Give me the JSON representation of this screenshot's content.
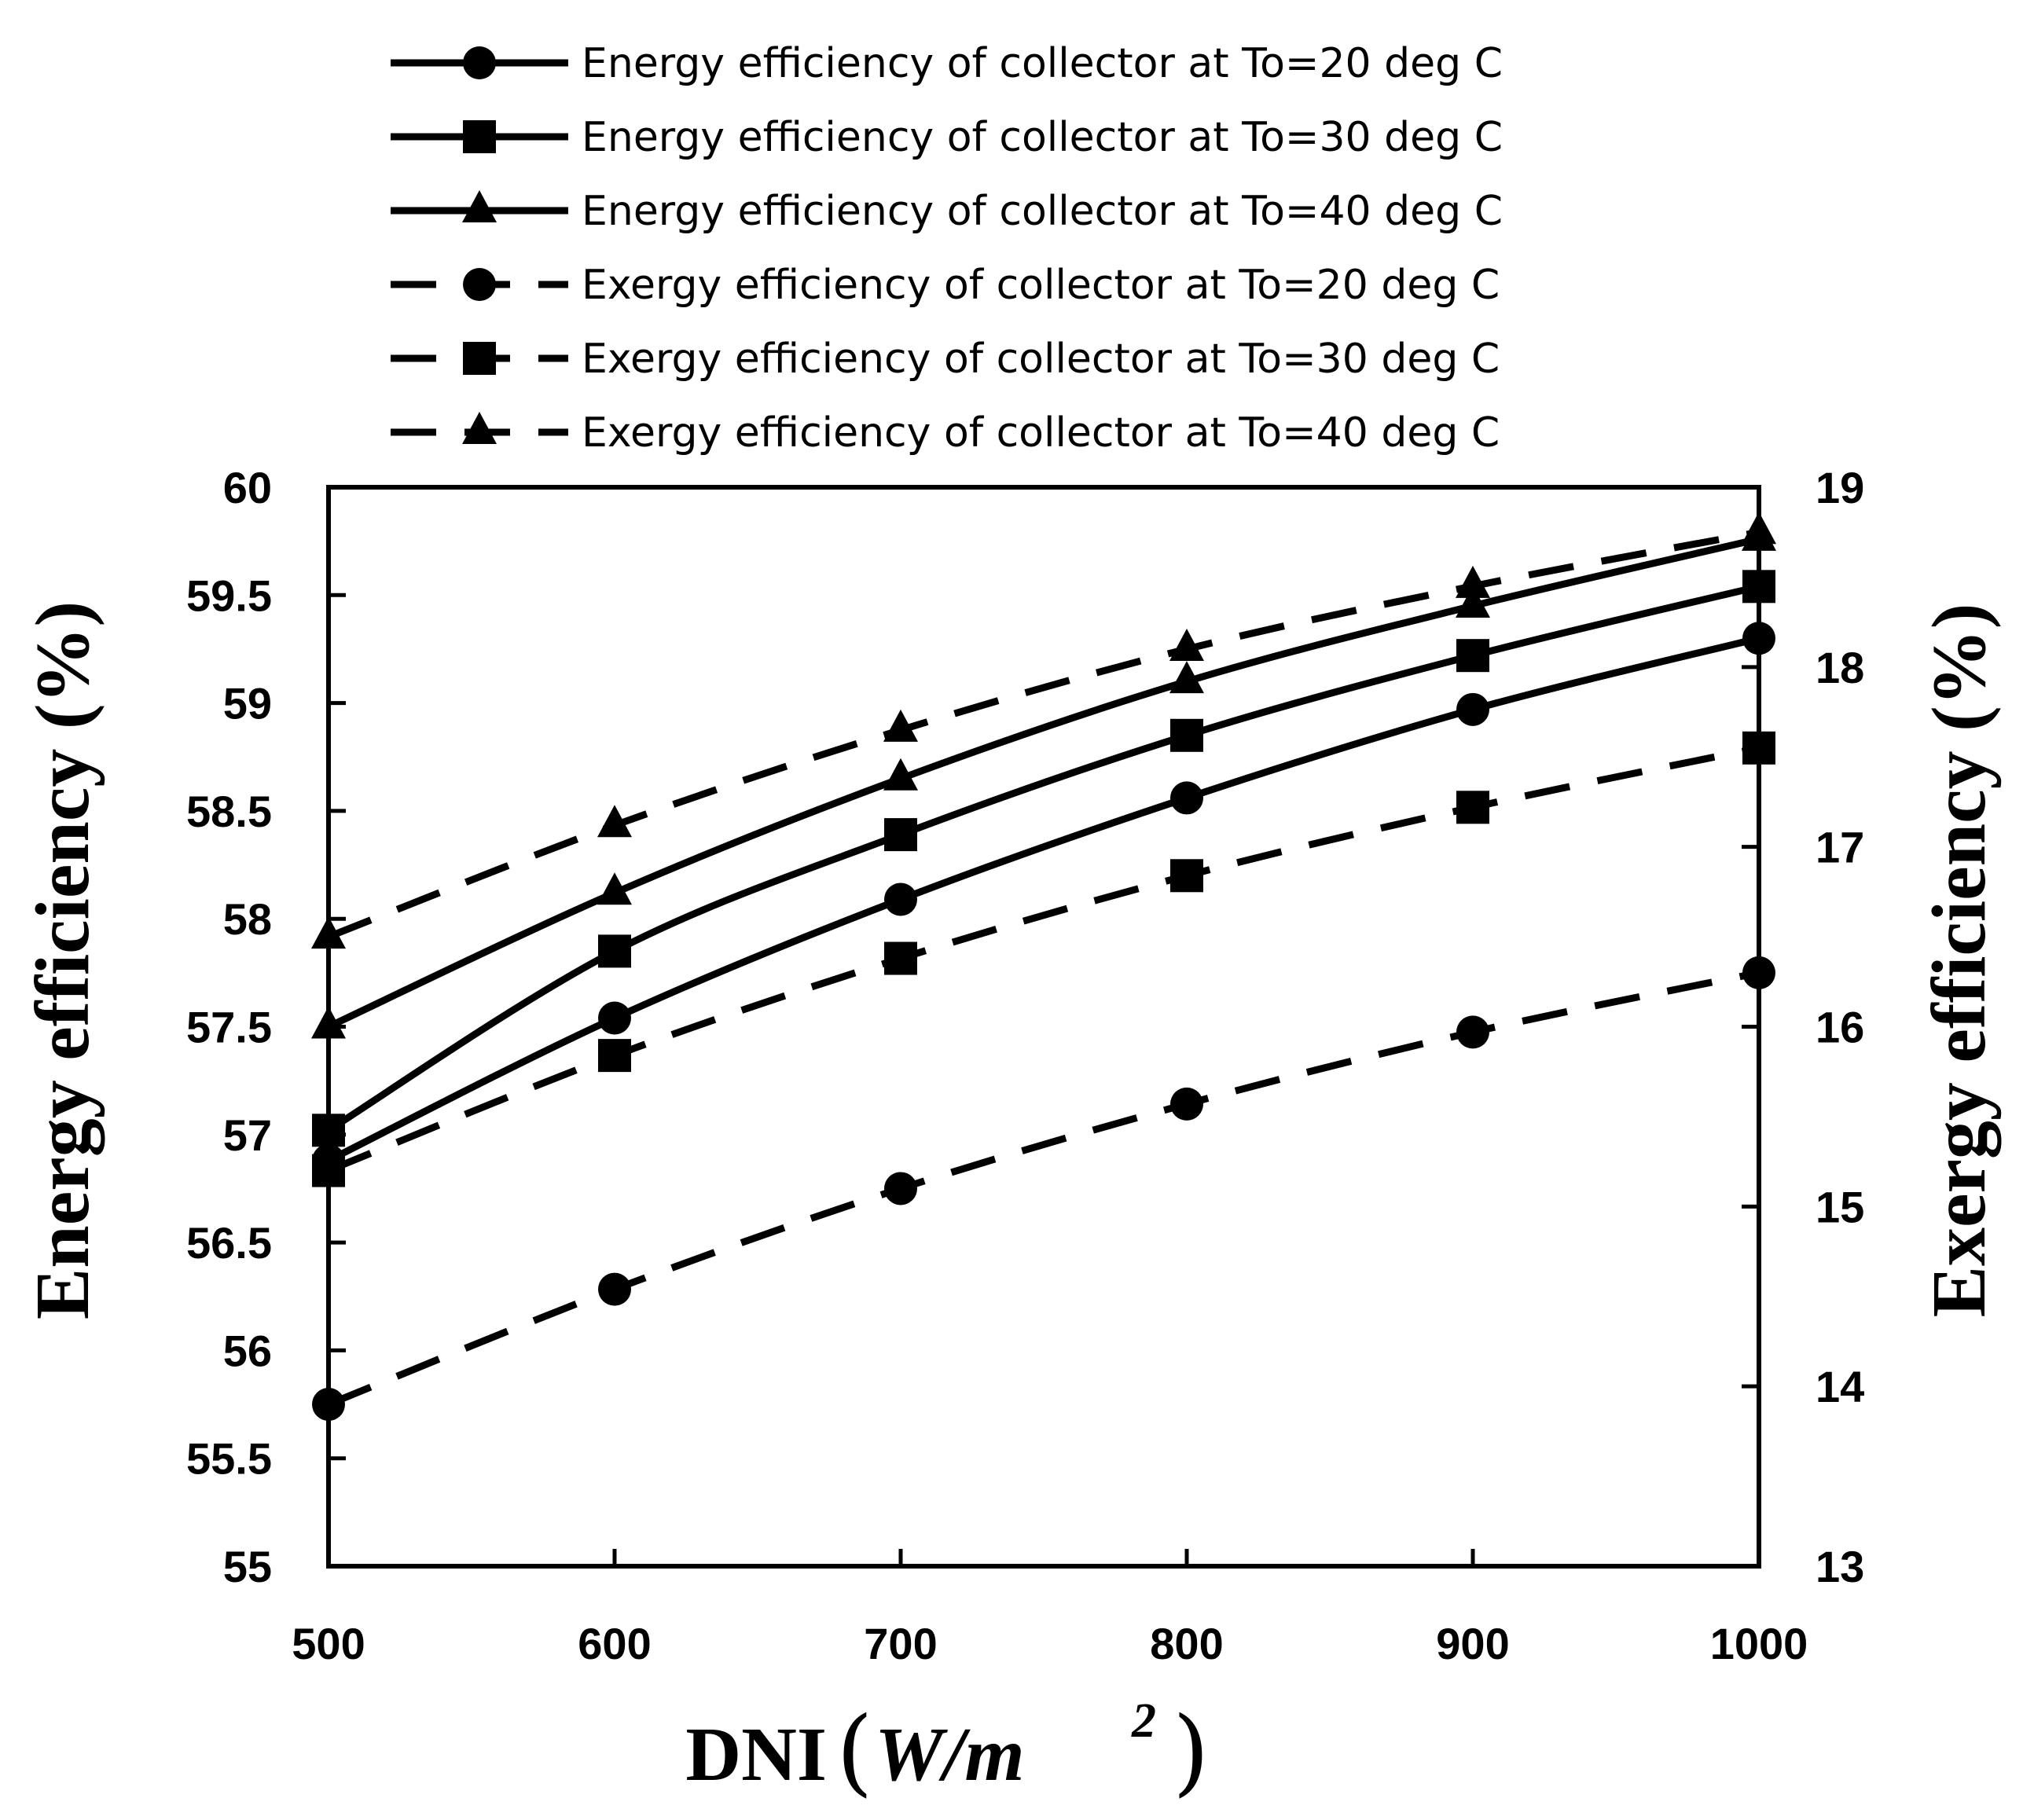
{
  "chart_data": {
    "type": "line",
    "x": [
      500,
      600,
      700,
      800,
      900,
      1000
    ],
    "xlabel": "DNI",
    "xlabel_unit": {
      "base": "W/m",
      "sup": "2"
    },
    "xlim": [
      500,
      1000
    ],
    "xticks": [
      "500",
      "600",
      "700",
      "800",
      "900",
      "1000"
    ],
    "ylabel_left": "Energy efficiency (%)",
    "ylim_left": [
      55,
      60
    ],
    "yticks_left": [
      "55",
      "55.5",
      "56",
      "56.5",
      "57",
      "57.5",
      "58",
      "58.5",
      "59",
      "59.5",
      "60"
    ],
    "ylabel_right": "Exergy efficiency (%)",
    "ylim_right": [
      13,
      19
    ],
    "yticks_right": [
      "13",
      "14",
      "15",
      "16",
      "17",
      "18",
      "19"
    ],
    "grid": false,
    "legend_position": "top",
    "series": [
      {
        "name": "Energy efficiency of collector at To=20 deg C",
        "axis": "left",
        "dash": "solid",
        "marker": "circle",
        "values": [
          56.88,
          57.54,
          58.09,
          58.56,
          58.97,
          59.3
        ]
      },
      {
        "name": "Energy efficiency of collector at To=30 deg C",
        "axis": "left",
        "dash": "solid",
        "marker": "square",
        "values": [
          57.02,
          57.85,
          58.39,
          58.85,
          59.22,
          59.54
        ]
      },
      {
        "name": "Energy efficiency of collector at To=40 deg C",
        "axis": "left",
        "dash": "solid",
        "marker": "triangle",
        "values": [
          57.5,
          58.12,
          58.65,
          59.1,
          59.45,
          59.76
        ]
      },
      {
        "name": "Exergy efficiency of collector at To=20 deg C",
        "axis": "right",
        "dash": "dashed",
        "marker": "circle",
        "values": [
          13.9,
          14.54,
          15.1,
          15.57,
          15.97,
          16.3
        ]
      },
      {
        "name": "Exergy efficiency of collector at To=30 deg C",
        "axis": "right",
        "dash": "dashed",
        "marker": "square",
        "values": [
          15.2,
          15.84,
          16.38,
          16.84,
          17.22,
          17.55
        ]
      },
      {
        "name": "Exergy efficiency of collector at To=40 deg C",
        "axis": "right",
        "dash": "dashed",
        "marker": "triangle",
        "values": [
          16.5,
          17.12,
          17.65,
          18.1,
          18.45,
          18.75
        ]
      }
    ]
  }
}
